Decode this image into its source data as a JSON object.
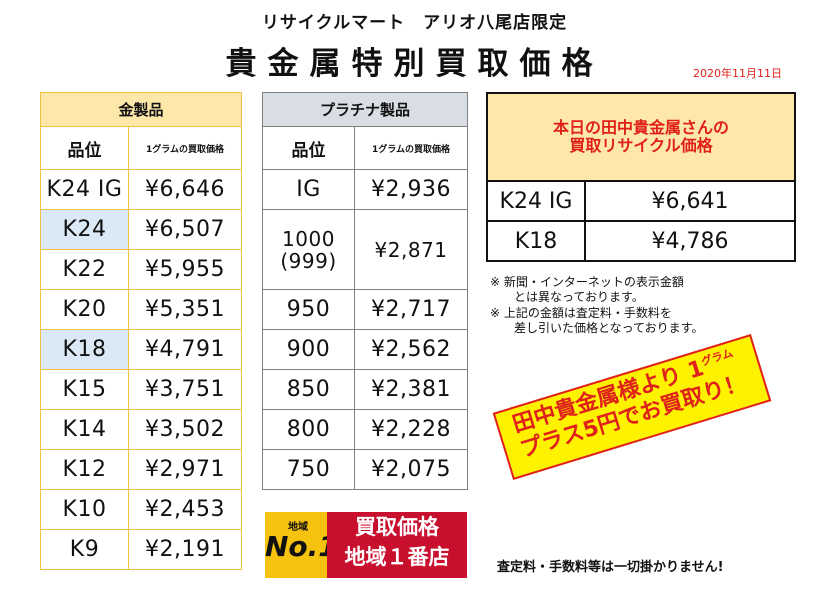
{
  "header": {
    "store": "リサイクルマート　アリオ八尾店限定",
    "title": "貴金属特別買取価格",
    "date": "2020年11月11日"
  },
  "gold": {
    "title": "金製品",
    "col_grade": "品位",
    "col_price": "1グラムの買取価格",
    "rows": [
      {
        "grade": "K24 IG",
        "price": "¥6,646"
      },
      {
        "grade": "K24",
        "price": "¥6,507"
      },
      {
        "grade": "K22",
        "price": "¥5,955"
      },
      {
        "grade": "K20",
        "price": "¥5,351"
      },
      {
        "grade": "K18",
        "price": "¥4,791"
      },
      {
        "grade": "K15",
        "price": "¥3,751"
      },
      {
        "grade": "K14",
        "price": "¥3,502"
      },
      {
        "grade": "K12",
        "price": "¥2,971"
      },
      {
        "grade": "K10",
        "price": "¥2,453"
      },
      {
        "grade": "K9",
        "price": "¥2,191"
      }
    ]
  },
  "platinum": {
    "title": "プラチナ製品",
    "col_grade": "品位",
    "col_price": "1グラムの買取価格",
    "rows": [
      {
        "grade": "IG",
        "price": "¥2,936"
      },
      {
        "grade": "1000",
        "grade_sub": "(999)",
        "price": "¥2,871"
      },
      {
        "grade": "950",
        "price": "¥2,717"
      },
      {
        "grade": "900",
        "price": "¥2,562"
      },
      {
        "grade": "850",
        "price": "¥2,381"
      },
      {
        "grade": "800",
        "price": "¥2,228"
      },
      {
        "grade": "750",
        "price": "¥2,075"
      }
    ]
  },
  "today": {
    "title_line1": "本日の田中貴金属さんの",
    "title_line2": "買取リサイクル価格",
    "rows": [
      {
        "grade": "K24 IG",
        "price": "¥6,641"
      },
      {
        "grade": "K18",
        "price": "¥4,786"
      }
    ]
  },
  "notes": {
    "note1_line1": "※ 新聞・インターネットの表示金額",
    "note1_line2": "　　とは異なっております。",
    "note2_line1": "※ 上記の金額は査定料・手数料を",
    "note2_line2": "　　差し引いた価格となっております。"
  },
  "banner": {
    "line1": "田中貴金属様より 1",
    "unit": "グラム",
    "line2": "プラス5円でお買取り！"
  },
  "badge": {
    "small": "地域",
    "big": "No.1",
    "line1": "買取価格",
    "line2": "地域１番店"
  },
  "footer": "査定料・手数料等は一切掛かりません!",
  "colors": {
    "gold_header": "#fde7a9",
    "gold_border": "#f4c243",
    "highlight": "#dbe8f6",
    "platinum_header": "#d9dee5",
    "accent_red": "#e0201a",
    "banner_yellow": "#fff200",
    "badge_red": "#c8102e"
  }
}
